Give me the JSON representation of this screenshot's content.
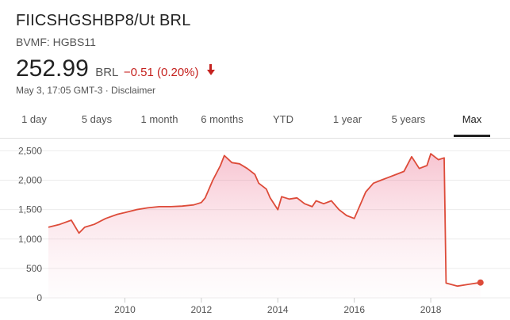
{
  "header": {
    "title": "FIICSHGSHBP8/Ut BRL",
    "ticker": "BVMF: HGBS11",
    "price": "252.99",
    "currency": "BRL",
    "change": "−0.51 (0.20%)",
    "meta": "May 3, 17:05 GMT-3 · Disclaimer",
    "change_color": "#c5221f"
  },
  "tabs": [
    {
      "label": "1 day"
    },
    {
      "label": "5 days"
    },
    {
      "label": "1 month"
    },
    {
      "label": "6 months"
    },
    {
      "label": "YTD"
    },
    {
      "label": "1 year"
    },
    {
      "label": "5 years"
    },
    {
      "label": "Max",
      "active": true
    }
  ],
  "chart_data": {
    "type": "area",
    "xlim": [
      2008.0,
      2019.45
    ],
    "ylim": [
      0,
      2600
    ],
    "yticks": [
      0,
      500,
      1000,
      1500,
      2000,
      2500
    ],
    "ytick_labels": [
      "0",
      "500",
      "1,000",
      "1,500",
      "2,000",
      "2,500"
    ],
    "xticks": [
      2010,
      2012,
      2014,
      2016,
      2018
    ],
    "xtick_labels": [
      "2010",
      "2012",
      "2014",
      "2016",
      "2018"
    ],
    "line_color": "#dd4b39",
    "grid": true,
    "series": [
      {
        "x": [
          2008.0,
          2008.3,
          2008.6,
          2008.8,
          2008.95,
          2009.2,
          2009.5,
          2009.8,
          2010.0,
          2010.3,
          2010.6,
          2010.9,
          2011.2,
          2011.5,
          2011.8,
          2012.0,
          2012.1,
          2012.3,
          2012.5,
          2012.6,
          2012.8,
          2013.0,
          2013.2,
          2013.4,
          2013.5,
          2013.7,
          2013.8,
          2014.0,
          2014.1,
          2014.3,
          2014.5,
          2014.7,
          2014.9,
          2015.0,
          2015.2,
          2015.4,
          2015.6,
          2015.8,
          2016.0,
          2016.1,
          2016.3,
          2016.5,
          2016.7,
          2016.9,
          2017.1,
          2017.3,
          2017.5,
          2017.7,
          2017.9,
          2018.0,
          2018.2,
          2018.35,
          2018.4,
          2018.7,
          2019.0,
          2019.3
        ],
        "y": [
          1200,
          1250,
          1320,
          1100,
          1200,
          1250,
          1350,
          1420,
          1450,
          1500,
          1530,
          1550,
          1550,
          1560,
          1580,
          1620,
          1700,
          2000,
          2250,
          2420,
          2300,
          2280,
          2200,
          2100,
          1950,
          1850,
          1700,
          1500,
          1720,
          1680,
          1700,
          1600,
          1550,
          1650,
          1600,
          1650,
          1500,
          1400,
          1350,
          1500,
          1800,
          1950,
          2000,
          2050,
          2100,
          2150,
          2400,
          2200,
          2250,
          2450,
          2350,
          2380,
          250,
          200,
          230,
          260
        ]
      }
    ]
  }
}
